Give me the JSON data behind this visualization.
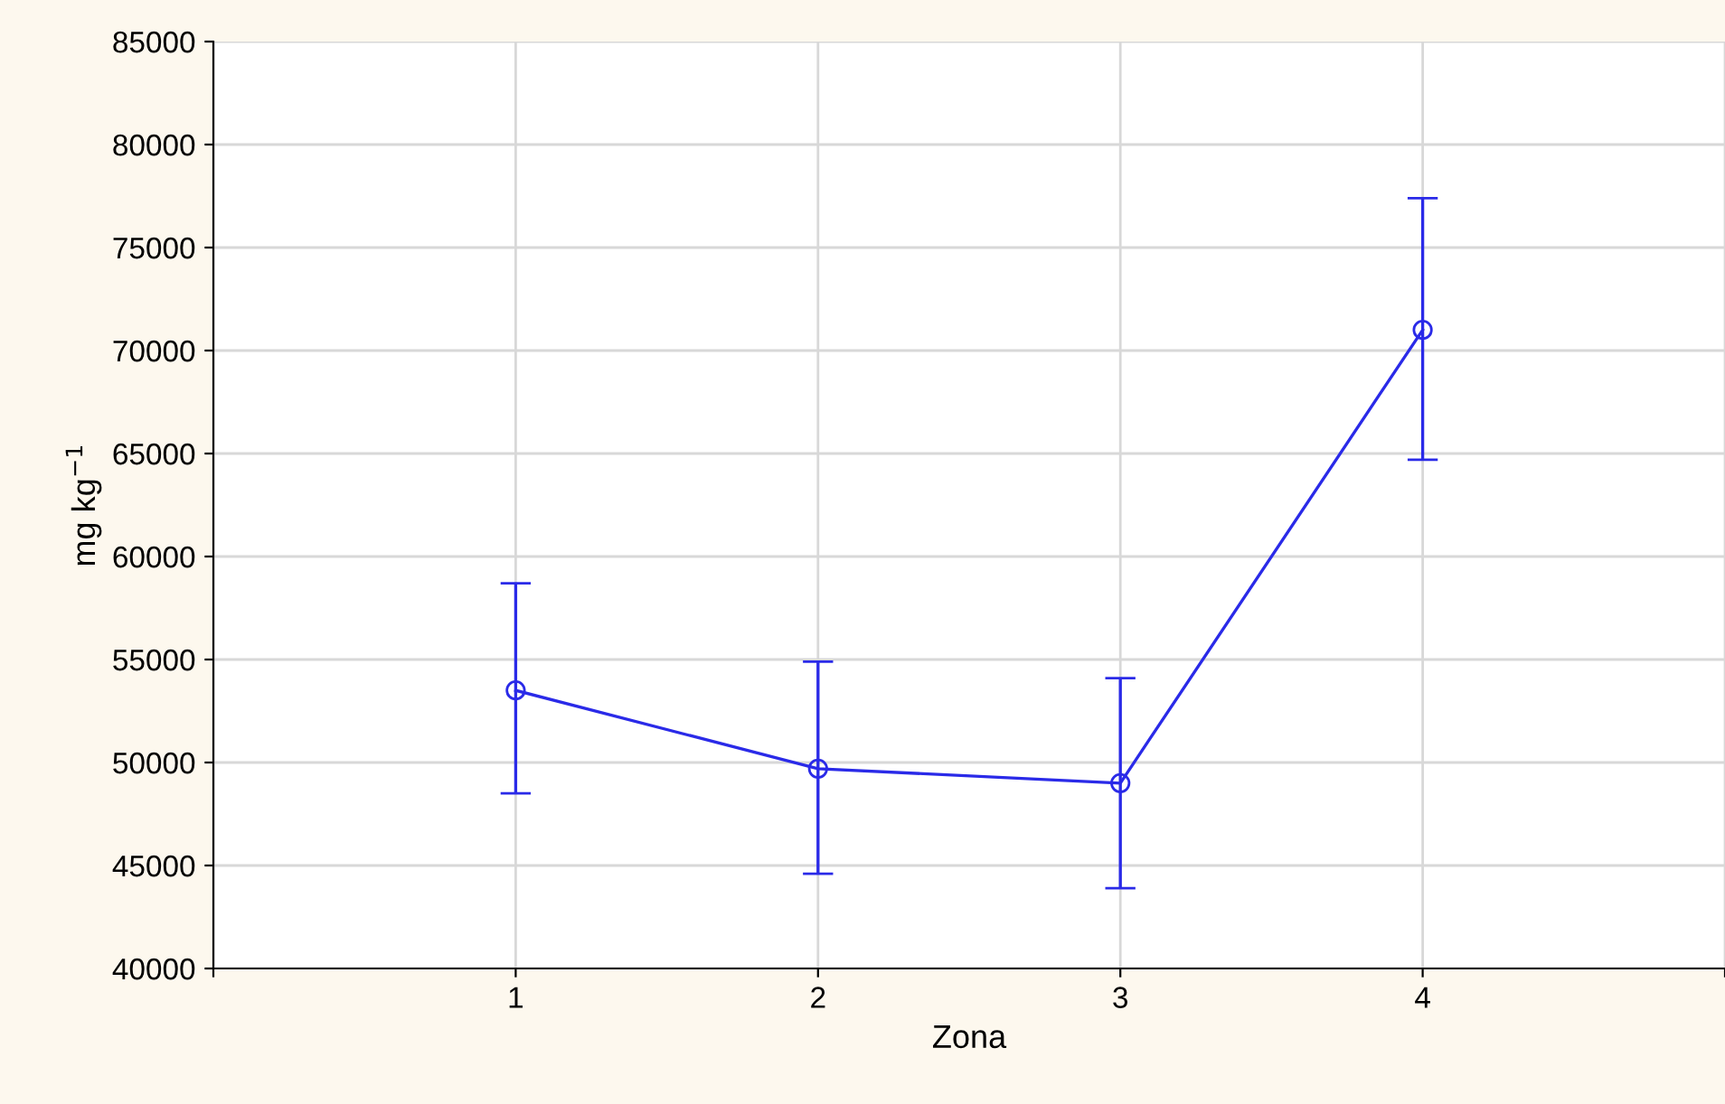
{
  "chart_data": {
    "type": "line",
    "xlabel": "Zona",
    "ylabel": "mg kg$^{−1}$",
    "x": [
      1,
      2,
      3,
      4
    ],
    "series": [
      {
        "color": "#2a2ae8",
        "values": [
          53500,
          49700,
          49000,
          71000
        ],
        "errors": [
          [
            48500,
            58700
          ],
          [
            44600,
            54900
          ],
          [
            43900,
            54100
          ],
          [
            64700,
            77400
          ]
        ]
      }
    ],
    "xlim": [
      0,
      5
    ],
    "xticks": [
      {
        "value": 0,
        "label": null
      },
      1,
      2,
      3,
      4,
      {
        "value": 5,
        "label": null
      }
    ],
    "ylim": [
      40000,
      85000
    ],
    "yticks": [
      40000,
      45000,
      50000,
      55000,
      60000,
      65000,
      70000,
      75000,
      80000,
      85000
    ],
    "grid": true,
    "marker": "circle",
    "line_style": "solid"
  }
}
